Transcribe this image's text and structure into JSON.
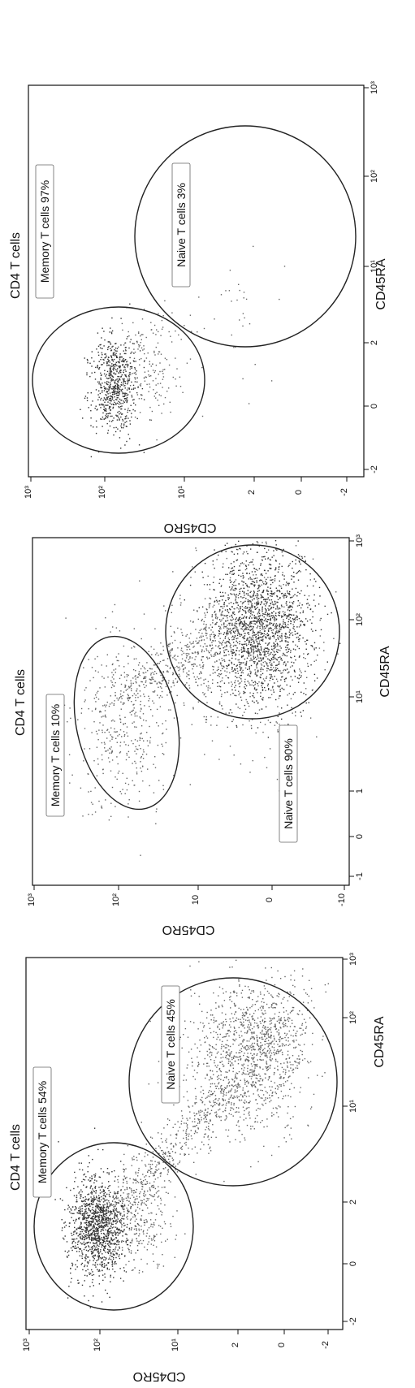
{
  "chart_data": [
    {
      "type": "scatter",
      "title": "CD4 T cells",
      "xlabel": "CD45RA",
      "ylabel": "CD45RO",
      "x_ticks": [
        "-2",
        "0",
        "2",
        "10¹",
        "10²",
        "10³"
      ],
      "y_ticks": [
        "-2",
        "0",
        "2",
        "10¹",
        "10²",
        "10³"
      ],
      "gates": [
        {
          "name": "Memory T cells",
          "percent": "54%",
          "label": "Memory T cells 54%"
        },
        {
          "name": "Naive T cells",
          "percent": "45%",
          "label": "Naive T cells 45%"
        }
      ]
    },
    {
      "type": "scatter",
      "title": "CD4 T cells",
      "xlabel": "CD45RA",
      "ylabel": "CD45RO",
      "x_ticks": [
        "-1",
        "0",
        "1",
        "10¹",
        "10²",
        "10³"
      ],
      "y_ticks": [
        "-10",
        "0",
        "10",
        "10²",
        "10³"
      ],
      "gates": [
        {
          "name": "Memory T cells",
          "percent": "10%",
          "label": "Memory T cells 10%"
        },
        {
          "name": "Naive T cells",
          "percent": "90%",
          "label": "Naive T cells 90%"
        }
      ]
    },
    {
      "type": "scatter",
      "title": "CD4 T cells",
      "xlabel": "CD45RA",
      "ylabel": "CD45RO",
      "x_ticks": [
        "-2",
        "0",
        "2",
        "10¹",
        "10²",
        "10³"
      ],
      "y_ticks": [
        "-2",
        "0",
        "2",
        "10¹",
        "10²",
        "10³"
      ],
      "gates": [
        {
          "name": "Memory T cells",
          "percent": "97%",
          "label": "Memory T cells 97%"
        },
        {
          "name": "Naive T cells",
          "percent": "3%",
          "label": "Naive T cells 3%"
        }
      ]
    }
  ]
}
